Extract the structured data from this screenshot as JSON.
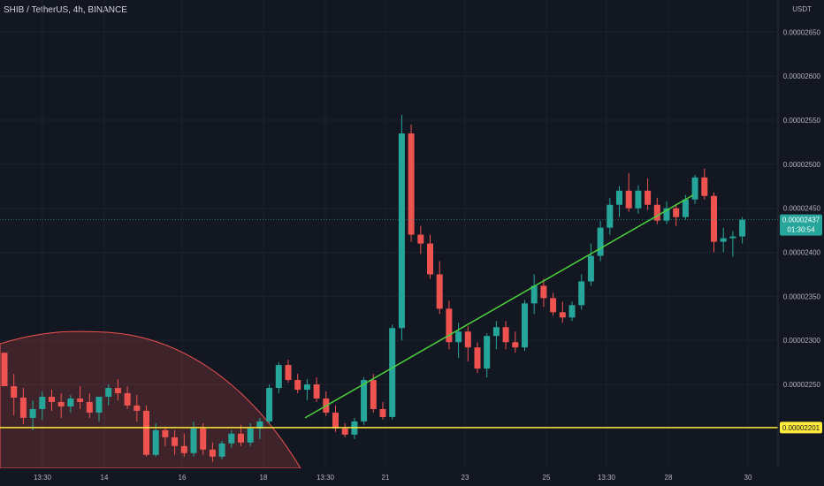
{
  "header": {
    "title": "SHIB / TetherUS, 4h, BINANCE",
    "currency": "USDT"
  },
  "colors": {
    "background": "#131722",
    "up": "#26a69a",
    "down": "#ef5350",
    "trendline": "#4cd13a",
    "support": "#ffeb3b",
    "grid": "#1e222d",
    "axis_text": "#b2b5be"
  },
  "price_badge": {
    "price": "0.00002437",
    "countdown": "01:30:54"
  },
  "support_badge": {
    "price": "0.00002201"
  },
  "chart_data": {
    "type": "candlestick",
    "y_ticks": [
      "0.00002650",
      "0.00002600",
      "0.00002550",
      "0.00002500",
      "0.00002450",
      "0.00002400",
      "0.00002350",
      "0.00002300",
      "0.00002250"
    ],
    "y_tick_values": [
      2650,
      2600,
      2550,
      2500,
      2450,
      2400,
      2350,
      2300,
      2250
    ],
    "y_unit_scale": "1e-8",
    "x_ticks": [
      "13:30",
      "14",
      "16",
      "18",
      "13:30",
      "21",
      "23",
      "25",
      "13:30",
      "28",
      "30"
    ],
    "ylim": [
      2160,
      2680
    ],
    "support_level": 2201,
    "trendline": {
      "start": [
        2,
        2212
      ],
      "end": [
        63,
        2465
      ]
    },
    "candles": [
      [
        2286,
        2286,
        2248,
        2248
      ],
      [
        2248,
        2262,
        2215,
        2235
      ],
      [
        2235,
        2246,
        2205,
        2212
      ],
      [
        2212,
        2232,
        2198,
        2222
      ],
      [
        2222,
        2242,
        2210,
        2236
      ],
      [
        2236,
        2244,
        2220,
        2230
      ],
      [
        2230,
        2240,
        2212,
        2225
      ],
      [
        2225,
        2238,
        2218,
        2234
      ],
      [
        2234,
        2248,
        2222,
        2230
      ],
      [
        2230,
        2240,
        2212,
        2218
      ],
      [
        2218,
        2234,
        2208,
        2236
      ],
      [
        2236,
        2250,
        2226,
        2246
      ],
      [
        2246,
        2256,
        2232,
        2240
      ],
      [
        2240,
        2248,
        2222,
        2226
      ],
      [
        2226,
        2238,
        2208,
        2220
      ],
      [
        2220,
        2226,
        2168,
        2170
      ],
      [
        2170,
        2206,
        2168,
        2198
      ],
      [
        2198,
        2202,
        2180,
        2190
      ],
      [
        2190,
        2198,
        2170,
        2180
      ],
      [
        2180,
        2194,
        2168,
        2172
      ],
      [
        2172,
        2208,
        2168,
        2200
      ],
      [
        2200,
        2206,
        2170,
        2176
      ],
      [
        2176,
        2184,
        2162,
        2168
      ],
      [
        2168,
        2186,
        2165,
        2183
      ],
      [
        2183,
        2198,
        2178,
        2194
      ],
      [
        2194,
        2204,
        2180,
        2184
      ],
      [
        2184,
        2206,
        2180,
        2200
      ],
      [
        2200,
        2212,
        2188,
        2208
      ],
      [
        2208,
        2250,
        2205,
        2246
      ],
      [
        2246,
        2275,
        2240,
        2272
      ],
      [
        2272,
        2278,
        2252,
        2255
      ],
      [
        2255,
        2262,
        2240,
        2244
      ],
      [
        2244,
        2256,
        2232,
        2250
      ],
      [
        2250,
        2258,
        2230,
        2234
      ],
      [
        2234,
        2242,
        2214,
        2218
      ],
      [
        2218,
        2226,
        2196,
        2200
      ],
      [
        2200,
        2206,
        2190,
        2193
      ],
      [
        2193,
        2212,
        2188,
        2208
      ],
      [
        2208,
        2258,
        2204,
        2255
      ],
      [
        2255,
        2262,
        2218,
        2222
      ],
      [
        2222,
        2230,
        2210,
        2213
      ],
      [
        2213,
        2318,
        2210,
        2314
      ],
      [
        2314,
        2556,
        2300,
        2535
      ],
      [
        2535,
        2545,
        2412,
        2420
      ],
      [
        2420,
        2430,
        2398,
        2410
      ],
      [
        2410,
        2420,
        2370,
        2375
      ],
      [
        2375,
        2390,
        2330,
        2336
      ],
      [
        2336,
        2345,
        2290,
        2298
      ],
      [
        2298,
        2320,
        2280,
        2310
      ],
      [
        2310,
        2316,
        2276,
        2292
      ],
      [
        2292,
        2298,
        2263,
        2268
      ],
      [
        2268,
        2308,
        2258,
        2305
      ],
      [
        2305,
        2322,
        2290,
        2315
      ],
      [
        2315,
        2322,
        2290,
        2298
      ],
      [
        2298,
        2310,
        2286,
        2292
      ],
      [
        2292,
        2346,
        2288,
        2342
      ],
      [
        2342,
        2375,
        2330,
        2362
      ],
      [
        2362,
        2370,
        2338,
        2348
      ],
      [
        2348,
        2354,
        2328,
        2332
      ],
      [
        2332,
        2344,
        2320,
        2326
      ],
      [
        2326,
        2344,
        2322,
        2340
      ],
      [
        2340,
        2375,
        2335,
        2367
      ],
      [
        2367,
        2410,
        2362,
        2396
      ],
      [
        2396,
        2436,
        2390,
        2428
      ],
      [
        2428,
        2462,
        2420,
        2454
      ],
      [
        2454,
        2475,
        2440,
        2470
      ],
      [
        2470,
        2490,
        2446,
        2450
      ],
      [
        2450,
        2476,
        2444,
        2470
      ],
      [
        2470,
        2484,
        2448,
        2454
      ],
      [
        2454,
        2462,
        2432,
        2436
      ],
      [
        2436,
        2458,
        2432,
        2450
      ],
      [
        2450,
        2455,
        2430,
        2440
      ],
      [
        2440,
        2465,
        2437,
        2460
      ],
      [
        2460,
        2488,
        2455,
        2485
      ],
      [
        2485,
        2495,
        2460,
        2464
      ],
      [
        2464,
        2468,
        2400,
        2412
      ],
      [
        2412,
        2428,
        2400,
        2416
      ],
      [
        2416,
        2424,
        2395,
        2418
      ],
      [
        2418,
        2440,
        2410,
        2437
      ]
    ]
  }
}
